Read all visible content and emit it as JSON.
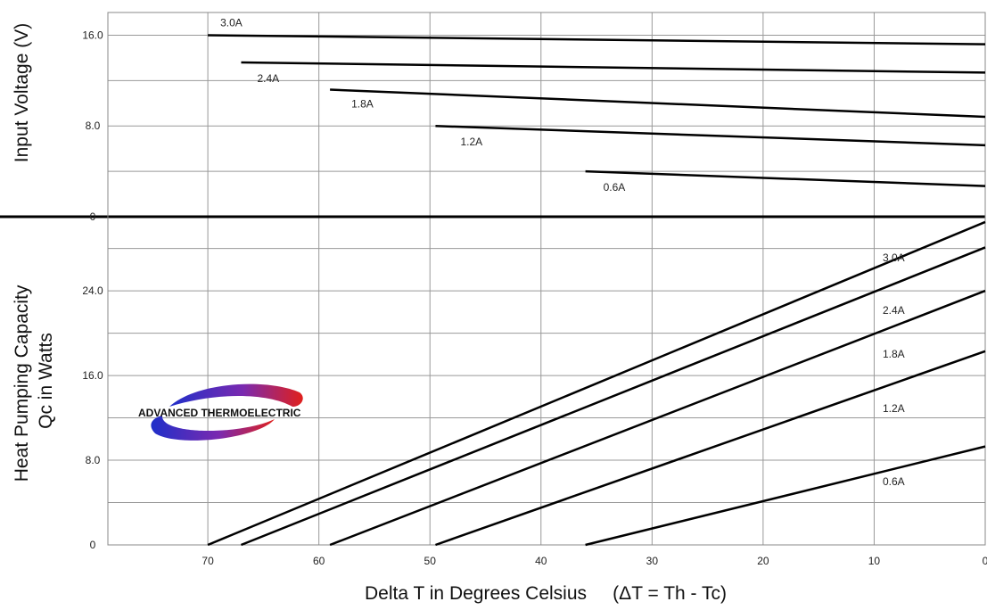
{
  "chart_data": [
    {
      "type": "line",
      "panel": "voltage",
      "ylabel": "Input Voltage (V)",
      "ylim": [
        0,
        18
      ],
      "xlim": [
        79,
        0
      ],
      "x_reversed": true,
      "yticks": [
        {
          "value": 0,
          "label": "0"
        },
        {
          "value": 8,
          "label": "8.0"
        },
        {
          "value": 16,
          "label": "16.0"
        }
      ],
      "series": [
        {
          "name": "3.0A",
          "x": [
            70,
            0
          ],
          "y": [
            16.0,
            15.2
          ]
        },
        {
          "name": "2.4A",
          "x": [
            67,
            0
          ],
          "y": [
            13.6,
            12.7
          ]
        },
        {
          "name": "1.8A",
          "x": [
            59,
            0
          ],
          "y": [
            11.2,
            8.8
          ]
        },
        {
          "name": "1.2A",
          "x": [
            49.5,
            0
          ],
          "y": [
            8.0,
            6.3
          ]
        },
        {
          "name": "0.6A",
          "x": [
            36,
            0
          ],
          "y": [
            4.0,
            2.7
          ]
        }
      ]
    },
    {
      "type": "line",
      "panel": "heat_pumping",
      "ylabel": "Heat Pumping Capacity\nQc in Watts",
      "ylim": [
        0,
        31
      ],
      "xlim": [
        79,
        0
      ],
      "x_reversed": true,
      "yticks": [
        {
          "value": 0,
          "label": "0"
        },
        {
          "value": 8,
          "label": "8.0"
        },
        {
          "value": 16,
          "label": "16.0"
        },
        {
          "value": 24,
          "label": "24.0"
        }
      ],
      "series": [
        {
          "name": "3.0A",
          "x": [
            70,
            0
          ],
          "y": [
            0,
            30.5
          ]
        },
        {
          "name": "2.4A",
          "x": [
            67,
            0
          ],
          "y": [
            0,
            28.1
          ]
        },
        {
          "name": "1.8A",
          "x": [
            59,
            0
          ],
          "y": [
            0,
            24.0
          ]
        },
        {
          "name": "1.2A",
          "x": [
            49.5,
            0
          ],
          "y": [
            0,
            18.3
          ]
        },
        {
          "name": "0.6A",
          "x": [
            36,
            0
          ],
          "y": [
            0,
            9.3
          ]
        }
      ]
    }
  ],
  "xlabel": "Delta T in Degrees Celsius     (ΔT = Th - Tc)",
  "xticks": [
    70,
    60,
    50,
    40,
    30,
    20,
    10,
    0
  ],
  "grid": true,
  "logo": {
    "text": "ADVANCED THERMOELECTRIC",
    "colors": [
      "#1f2fc9",
      "#7a2ab0",
      "#e0201c"
    ]
  }
}
